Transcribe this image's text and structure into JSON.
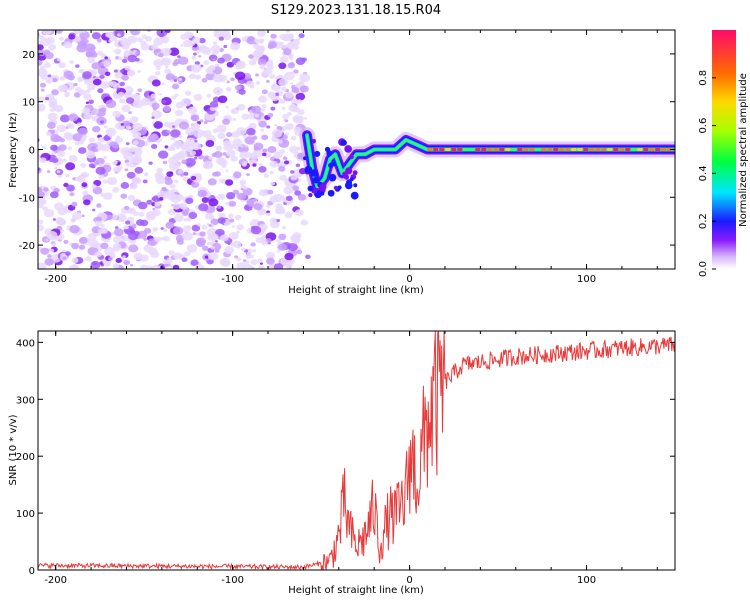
{
  "title": "S129.2023.131.18.15.R04",
  "chart_data": [
    {
      "type": "heatmap",
      "xlabel": "Height of straight line (km)",
      "ylabel": "Frequency (Hz)",
      "xlim": [
        -210,
        150
      ],
      "ylim": [
        -25,
        25
      ],
      "xticks": [
        -200,
        -100,
        0,
        100
      ],
      "yticks": [
        -20,
        -10,
        0,
        10,
        20
      ],
      "colorbar": {
        "label": "Normalized spectral amplitude",
        "range": [
          0,
          1
        ],
        "ticks": [
          "0.0",
          "0.2",
          "0.4",
          "0.6",
          "0.8"
        ]
      },
      "noise_region": [
        -210,
        -60
      ],
      "ridge": [
        {
          "x": -58,
          "y": 3
        },
        {
          "x": -55,
          "y": -4
        },
        {
          "x": -52,
          "y": -8
        },
        {
          "x": -48,
          "y": -6
        },
        {
          "x": -45,
          "y": -2
        },
        {
          "x": -42,
          "y": -1
        },
        {
          "x": -38,
          "y": -5
        },
        {
          "x": -34,
          "y": -3
        },
        {
          "x": -30,
          "y": -1
        },
        {
          "x": -25,
          "y": -1
        },
        {
          "x": -20,
          "y": 0
        },
        {
          "x": -15,
          "y": 0
        },
        {
          "x": -8,
          "y": 0
        },
        {
          "x": -2,
          "y": 2
        },
        {
          "x": 4,
          "y": 1
        },
        {
          "x": 10,
          "y": 0
        },
        {
          "x": 20,
          "y": 0
        },
        {
          "x": 150,
          "y": 0
        }
      ]
    },
    {
      "type": "line",
      "xlabel": "Height of straight line (km)",
      "ylabel": "SNR (10 * v/v)",
      "xlim": [
        -210,
        150
      ],
      "ylim": [
        0,
        420
      ],
      "xticks": [
        -200,
        -100,
        0,
        100
      ],
      "yticks": [
        0,
        100,
        200,
        300,
        400
      ],
      "color": "#e83a3a",
      "series": [
        {
          "x": [
            -210,
            -150,
            -100,
            -60,
            -45,
            -40,
            -37,
            -34,
            -30,
            -25,
            -20,
            -17,
            -12,
            -6,
            -2,
            0,
            5,
            10,
            15,
            20,
            30,
            40,
            50,
            60,
            80,
            100,
            120,
            150
          ],
          "y": [
            8,
            7,
            6,
            5,
            15,
            60,
            120,
            70,
            40,
            60,
            110,
            40,
            90,
            100,
            130,
            200,
            160,
            260,
            300,
            330,
            360,
            365,
            370,
            375,
            380,
            385,
            390,
            395
          ]
        }
      ]
    }
  ]
}
